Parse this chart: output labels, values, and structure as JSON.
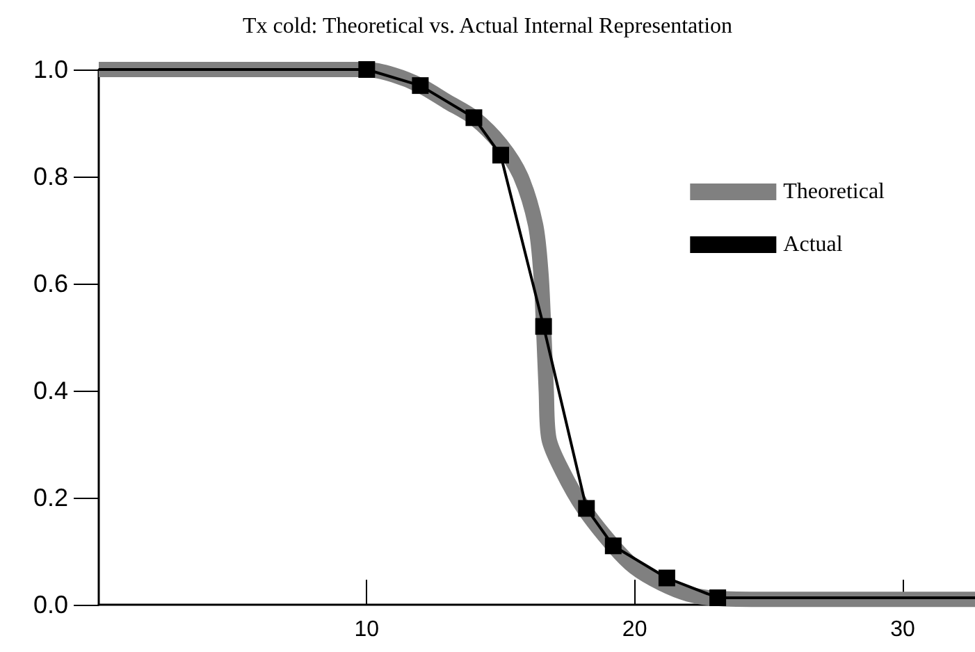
{
  "chart_data": {
    "type": "line",
    "title": "Tx cold: Theoretical vs. Actual Internal Representation",
    "xlim": [
      0,
      32.7
    ],
    "xticks": [
      10,
      20,
      30
    ],
    "ylim": [
      0,
      1
    ],
    "yticks": [
      {
        "value": 0,
        "label": "0.0"
      },
      {
        "value": 0.2,
        "label": "0.2"
      },
      {
        "value": 0.4,
        "label": "0.4"
      },
      {
        "value": 0.6,
        "label": "0.6"
      },
      {
        "value": 0.8,
        "label": "0.8"
      },
      {
        "value": 1,
        "label": "1.0"
      }
    ],
    "grid": false,
    "legend": "right",
    "line_style": "solid",
    "series": [
      {
        "name": "Theoretical",
        "color": "#808080",
        "marker": "none",
        "x": [
          0,
          10,
          11,
          12,
          13,
          14,
          15,
          15.75,
          16.3,
          16.5,
          16.6,
          16.7,
          16.8,
          17.3,
          18.1,
          19.2,
          20,
          21,
          22,
          23,
          25,
          32.7
        ],
        "values": [
          1.0,
          1.0,
          0.99,
          0.97,
          0.94,
          0.91,
          0.86,
          0.8,
          0.71,
          0.62,
          0.52,
          0.4,
          0.31,
          0.25,
          0.18,
          0.11,
          0.07,
          0.04,
          0.02,
          0.012,
          0.01,
          0.01
        ]
      },
      {
        "name": "Actual",
        "color": "#000000",
        "marker": "square",
        "x": [
          0,
          10,
          12,
          14,
          15,
          16.6,
          18.2,
          19.2,
          21.2,
          23.1,
          32.7
        ],
        "values": [
          1.0,
          1.0,
          0.97,
          0.91,
          0.84,
          0.52,
          0.18,
          0.11,
          0.05,
          0.013,
          0.013
        ]
      }
    ]
  }
}
